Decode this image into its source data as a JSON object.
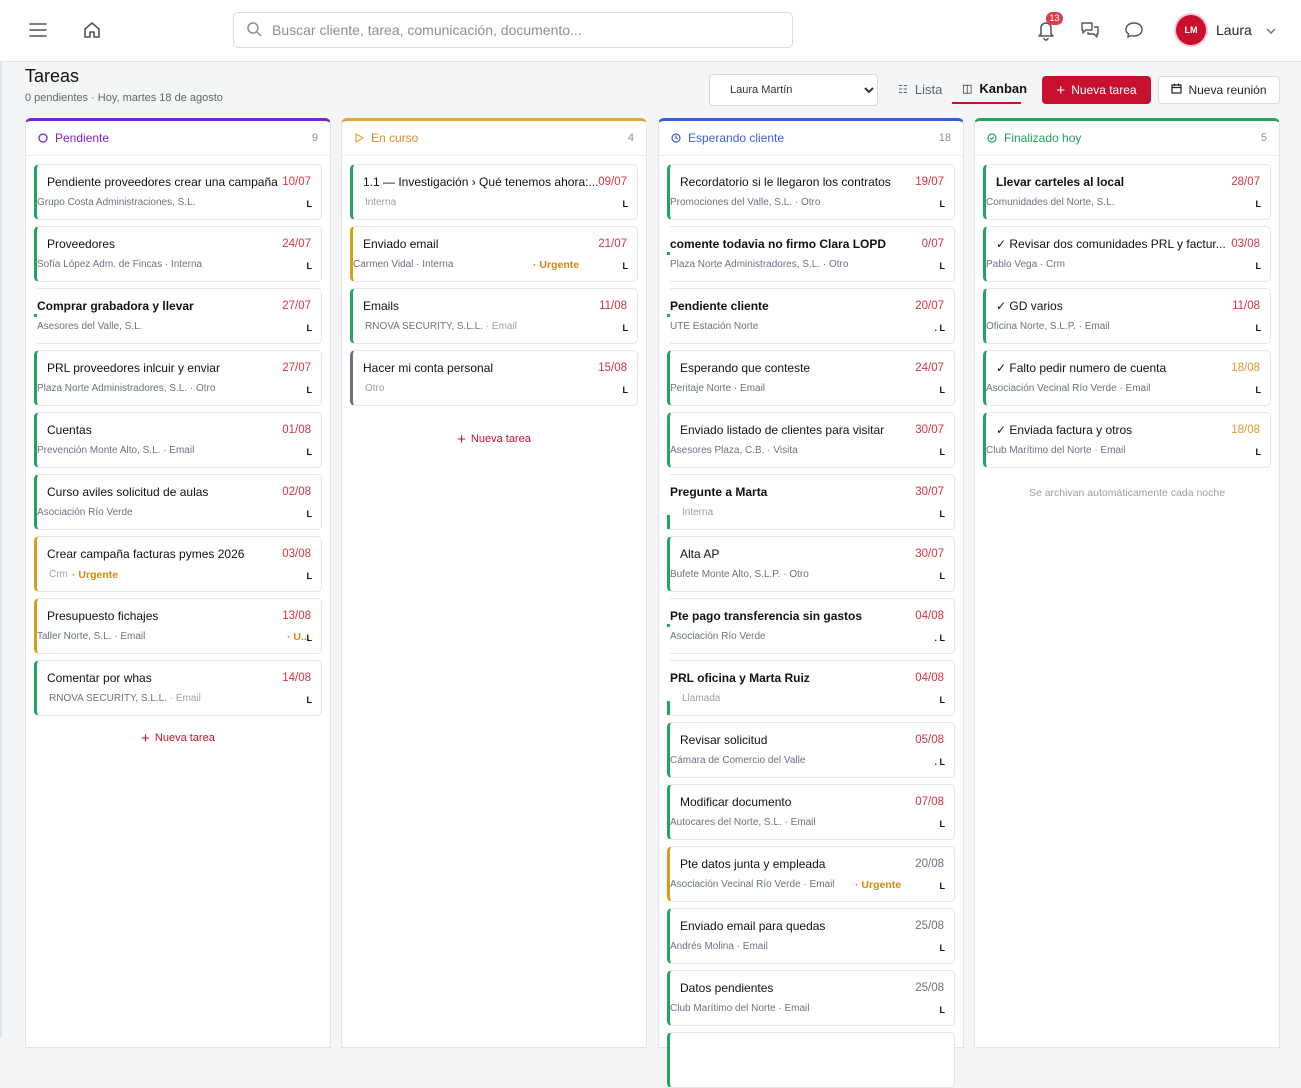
{
  "topbar": {
    "search_placeholder": "Buscar cliente, tarea, comunicación, documento...",
    "notifications_count": "13",
    "avatar_initials": "LM",
    "user_name": "Laura"
  },
  "header": {
    "title": "Tareas",
    "subtitle": "0 pendientes · Hoy, martes 18 de agosto",
    "user_filter": "Laura Martín",
    "view_list": "Lista",
    "view_kanban": "Kanban",
    "new_task_button": "Nueva tarea",
    "new_meeting_button": "Nueva reunión"
  },
  "colors": {
    "brand": "#c8102e",
    "pendiente": "#7e22ce",
    "en_curso": "#e8a33c",
    "esperando": "#3b5fd9",
    "finalizado": "#22a45d"
  },
  "columns": {
    "pendiente": {
      "title": "Pendiente",
      "count": "9",
      "new_task": "Nueva tarea",
      "cards": [
        {
          "title": "Pendiente proveedores crear una campaña",
          "date": "10/07",
          "meta": "Grupo Costa Administraciones, S.L.",
          "owner": "L"
        },
        {
          "title": "Proveedores",
          "date": "24/07",
          "meta": "Sofía López Adm. de Fincas · Interna",
          "owner": "L"
        },
        {
          "title": "Comprar grabadora y llevar",
          "date": "27/07",
          "meta": "Asesores del Valle, S.L.",
          "owner": "L"
        },
        {
          "title": "PRL proveedores inlcuir y enviar",
          "date": "27/07",
          "meta": "Plaza Norte Administradores, S.L. · Otro",
          "owner": "L"
        },
        {
          "title": "Cuentas",
          "date": "01/08",
          "meta": "Prevención Monte Alto, S.L. · Email",
          "owner": "L"
        },
        {
          "title": "Curso aviles solicitud de aulas",
          "date": "02/08",
          "meta": "Asociación Río Verde",
          "owner": "L"
        },
        {
          "title": "Crear campaña facturas pymes 2026",
          "date": "03/08",
          "meta": "Crm",
          "urgent": "· Urgente",
          "owner": "L"
        },
        {
          "title": "Presupuesto fichajes",
          "date": "13/08",
          "meta": "Taller Norte, S.L. · Email",
          "urgent": "· U...",
          "owner": "L"
        },
        {
          "title": "Comentar por whas",
          "date": "14/08",
          "meta": "RNOVA SECURITY, S.L.L.",
          "meta2": " · Email",
          "owner": "L"
        }
      ]
    },
    "en_curso": {
      "title": "En curso",
      "count": "4",
      "new_task": "Nueva tarea",
      "cards": [
        {
          "title": "1.1 — Investigación › Qué tenemos ahora:...",
          "date": "09/07",
          "meta": "Interna",
          "owner": "L"
        },
        {
          "title": "Enviado email",
          "date": "21/07",
          "meta": "Carmen Vidal · Interna",
          "urgent": "· Urgente",
          "owner": "L"
        },
        {
          "title": "Emails",
          "date": "11/08",
          "meta": "RNOVA SECURITY, S.L.L.",
          "meta2": " · Email",
          "owner": "L"
        },
        {
          "title": "Hacer mi conta personal",
          "date": "15/08",
          "meta": "Otro",
          "owner": "L"
        }
      ]
    },
    "esperando": {
      "title": "Esperando cliente",
      "count": "18",
      "cards": [
        {
          "title": "Recordatorio si le llegaron los contratos",
          "date": "19/07",
          "meta": "Promociones del Valle, S.L. · Otro",
          "owner": "L"
        },
        {
          "title": "comente todavia no firmo Clara LOPD",
          "date": "0/07",
          "meta": "Plaza Norte Administradores, S.L. · Otro",
          "owner": "L"
        },
        {
          "title": "Pendiente cliente",
          "date": "20/07",
          "meta": "UTE Estación Norte",
          "owner": ". L"
        },
        {
          "title": "Esperando que conteste",
          "date": "24/07",
          "meta": "Peritaje Norte · Email",
          "owner": "L"
        },
        {
          "title": "Enviado listado de clientes para visitar",
          "date": "30/07",
          "meta": "Asesores Plaza, C.B. · Visita",
          "owner": "L"
        },
        {
          "title": "Pregunte a Marta",
          "date": "30/07",
          "meta": "Interna",
          "owner": "L"
        },
        {
          "title": "Alta AP",
          "date": "30/07",
          "meta": "Bufete Monte Alto, S.L.P. · Otro",
          "owner": "L"
        },
        {
          "title": "Pte pago transferencia sin gastos",
          "date": "04/08",
          "meta": "Asociación Río Verde",
          "owner": ". L"
        },
        {
          "title": "PRL oficina y Marta Ruiz",
          "date": "04/08",
          "meta": "Llamada",
          "owner": "L"
        },
        {
          "title": "Revisar solicitud",
          "date": "05/08",
          "meta": "Cámara de Comercio del Valle",
          "owner": ". L"
        },
        {
          "title": "Modificar documento",
          "date": "07/08",
          "meta": "Autocares del Norte, S.L. · Email",
          "owner": "L"
        },
        {
          "title": "Pte datos junta y empleada",
          "date": "20/08",
          "meta": "Asociación Vecinal Río Verde · Email",
          "urgent": "· Urgente",
          "owner": "L"
        },
        {
          "title": "Enviado email para quedas",
          "date": "25/08",
          "meta": "Andrés Molina · Email",
          "owner": "L"
        },
        {
          "title": "Datos pendientes",
          "date": "25/08",
          "meta": "Club Marítimo del Norte · Email",
          "owner": "L"
        }
      ]
    },
    "finalizado": {
      "title": "Finalizado hoy",
      "count": "5",
      "note": "Se archivan automáticamente cada noche",
      "cards": [
        {
          "title": "Llevar carteles al local",
          "date": "28/07",
          "meta": "Comunidades del Norte, S.L.",
          "owner": "L"
        },
        {
          "title": "✓ Revisar dos comunidades PRL y factur...",
          "date": "03/08",
          "meta": "Pablo Vega · Crm",
          "owner": "L"
        },
        {
          "title": "✓ GD varios",
          "date": "11/08",
          "meta": "Oficina Norte, S.L.P. · Email",
          "owner": "L"
        },
        {
          "title": "✓ Falto pedir numero de cuenta",
          "date": "18/08",
          "meta": "Asociación Vecinal Río Verde · Email",
          "owner": "L"
        },
        {
          "title": "✓ Enviada factura y otros",
          "date": "18/08",
          "meta": "Club Marítimo del Norte · Email",
          "owner": "L"
        }
      ]
    }
  }
}
